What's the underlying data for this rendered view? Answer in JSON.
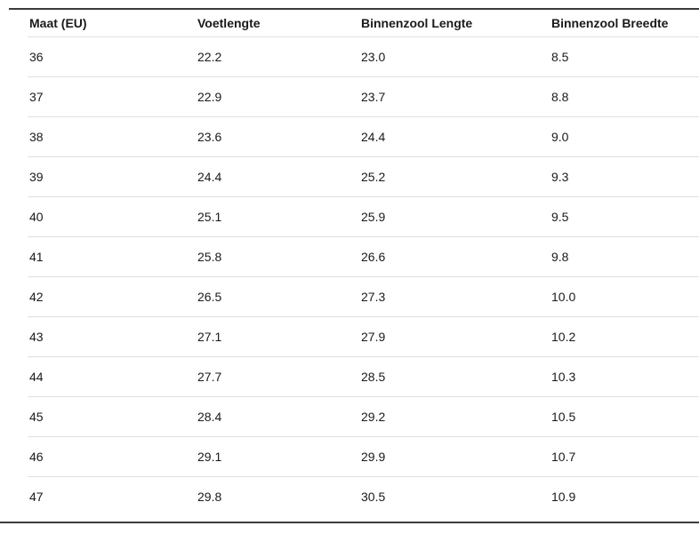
{
  "colors": {
    "bg": "#ffffff",
    "text": "#1a1a1a",
    "divider": "#e0e0e0",
    "dark_rule": "#3b3b3b"
  },
  "table": {
    "columns": [
      "Maat (EU)",
      "Voetlengte",
      "Binnenzool Lengte",
      "Binnenzool Breedte"
    ],
    "rows": [
      {
        "maat": "36",
        "voetlengte": "22.2",
        "binnenzool_lengte": "23.0",
        "binnenzool_breedte": "8.5"
      },
      {
        "maat": "37",
        "voetlengte": "22.9",
        "binnenzool_lengte": "23.7",
        "binnenzool_breedte": "8.8"
      },
      {
        "maat": "38",
        "voetlengte": "23.6",
        "binnenzool_lengte": "24.4",
        "binnenzool_breedte": "9.0"
      },
      {
        "maat": "39",
        "voetlengte": "24.4",
        "binnenzool_lengte": "25.2",
        "binnenzool_breedte": "9.3"
      },
      {
        "maat": "40",
        "voetlengte": "25.1",
        "binnenzool_lengte": "25.9",
        "binnenzool_breedte": "9.5"
      },
      {
        "maat": "41",
        "voetlengte": "25.8",
        "binnenzool_lengte": "26.6",
        "binnenzool_breedte": "9.8"
      },
      {
        "maat": "42",
        "voetlengte": "26.5",
        "binnenzool_lengte": "27.3",
        "binnenzool_breedte": "10.0"
      },
      {
        "maat": "43",
        "voetlengte": "27.1",
        "binnenzool_lengte": "27.9",
        "binnenzool_breedte": "10.2"
      },
      {
        "maat": "44",
        "voetlengte": "27.7",
        "binnenzool_lengte": "28.5",
        "binnenzool_breedte": "10.3"
      },
      {
        "maat": "45",
        "voetlengte": "28.4",
        "binnenzool_lengte": "29.2",
        "binnenzool_breedte": "10.5"
      },
      {
        "maat": "46",
        "voetlengte": "29.1",
        "binnenzool_lengte": "29.9",
        "binnenzool_breedte": "10.7"
      },
      {
        "maat": "47",
        "voetlengte": "29.8",
        "binnenzool_lengte": "30.5",
        "binnenzool_breedte": "10.9"
      }
    ]
  }
}
